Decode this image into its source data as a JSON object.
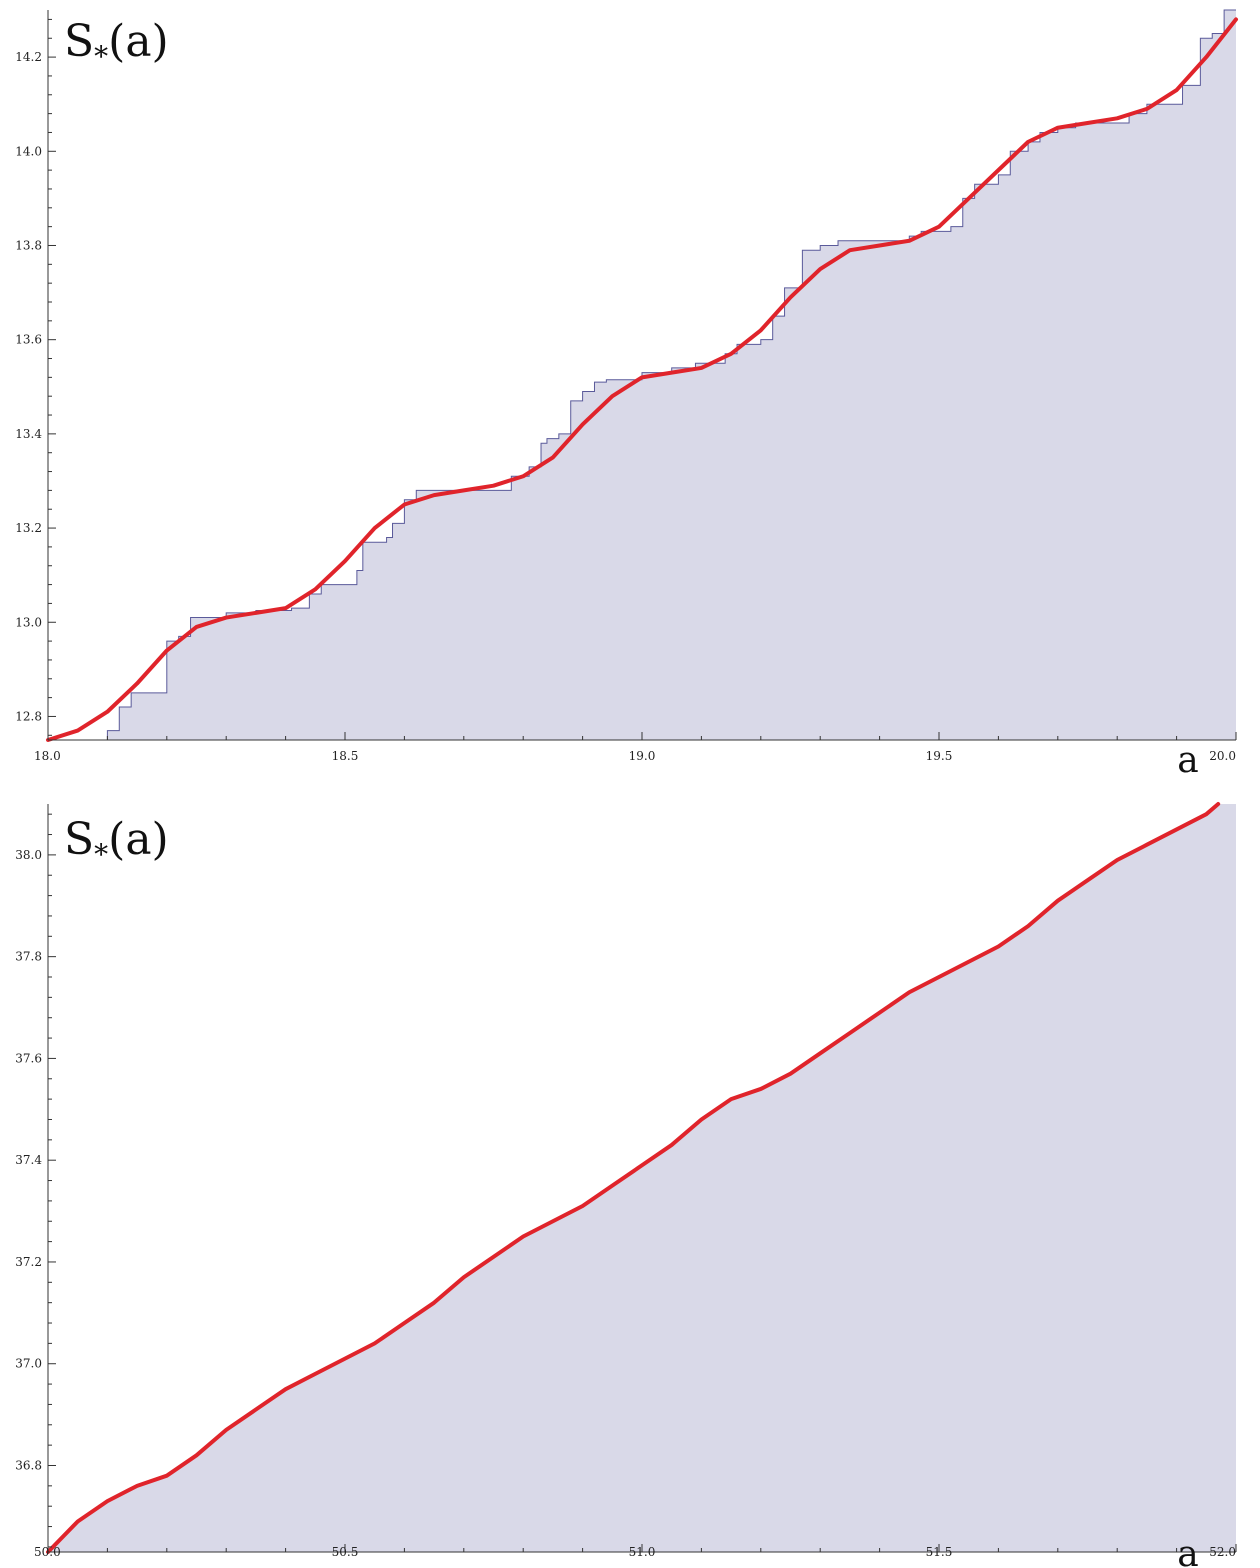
{
  "colors": {
    "fill": "#d9d9e8",
    "step_line": "#5a5a9a",
    "smooth_curve": "#e0242b",
    "axis": "#333333"
  },
  "chart_data": [
    {
      "type": "area",
      "ylabel": {
        "main": "S",
        "subscript": "*",
        "arg": "(a)"
      },
      "xlabel": "a",
      "xlim": [
        18.0,
        20.0
      ],
      "ylim": [
        12.75,
        14.3
      ],
      "x_ticks": [
        18.0,
        18.5,
        19.0,
        19.5,
        20.0
      ],
      "x_tick_labels": [
        "18.0",
        "18.5",
        "19.0",
        "19.5",
        "20.0"
      ],
      "y_ticks": [
        12.8,
        13.0,
        13.2,
        13.4,
        13.6,
        13.8,
        14.0,
        14.2
      ],
      "y_tick_labels": [
        "12.8",
        "13.0",
        "13.2",
        "13.4",
        "13.6",
        "13.8",
        "14.0",
        "14.2"
      ],
      "series": [
        {
          "role": "step",
          "x": [
            18.0,
            18.1,
            18.12,
            18.14,
            18.19,
            18.2,
            18.22,
            18.24,
            18.3,
            18.35,
            18.41,
            18.44,
            18.46,
            18.5,
            18.52,
            18.53,
            18.57,
            18.58,
            18.6,
            18.62,
            18.65,
            18.78,
            18.81,
            18.83,
            18.84,
            18.86,
            18.88,
            18.9,
            18.92,
            18.94,
            19.0,
            19.05,
            19.09,
            19.14,
            19.16,
            19.2,
            19.22,
            19.24,
            19.27,
            19.3,
            19.33,
            19.39,
            19.45,
            19.47,
            19.52,
            19.54,
            19.56,
            19.6,
            19.62,
            19.65,
            19.67,
            19.7,
            19.73,
            19.78,
            19.82,
            19.85,
            19.91,
            19.94,
            19.96,
            19.98,
            20.0
          ],
          "y": [
            12.75,
            12.77,
            12.82,
            12.85,
            12.85,
            12.96,
            12.97,
            13.01,
            13.02,
            13.025,
            13.03,
            13.06,
            13.08,
            13.08,
            13.11,
            13.17,
            13.18,
            13.21,
            13.26,
            13.28,
            13.28,
            13.31,
            13.33,
            13.38,
            13.39,
            13.4,
            13.47,
            13.49,
            13.51,
            13.515,
            13.53,
            13.54,
            13.55,
            13.57,
            13.59,
            13.6,
            13.65,
            13.71,
            13.79,
            13.8,
            13.81,
            13.81,
            13.82,
            13.83,
            13.84,
            13.9,
            13.93,
            13.95,
            14.0,
            14.02,
            14.04,
            14.05,
            14.06,
            14.06,
            14.08,
            14.1,
            14.14,
            14.24,
            14.25,
            14.3,
            14.3
          ]
        },
        {
          "role": "smooth",
          "x": [
            18.0,
            18.05,
            18.1,
            18.15,
            18.2,
            18.25,
            18.3,
            18.35,
            18.4,
            18.45,
            18.5,
            18.55,
            18.6,
            18.65,
            18.7,
            18.75,
            18.8,
            18.85,
            18.9,
            18.95,
            19.0,
            19.05,
            19.1,
            19.15,
            19.2,
            19.25,
            19.3,
            19.35,
            19.4,
            19.45,
            19.5,
            19.55,
            19.6,
            19.65,
            19.7,
            19.75,
            19.8,
            19.85,
            19.9,
            19.95,
            20.0
          ],
          "y": [
            12.75,
            12.77,
            12.81,
            12.87,
            12.94,
            12.99,
            13.01,
            13.02,
            13.03,
            13.07,
            13.13,
            13.2,
            13.25,
            13.27,
            13.28,
            13.29,
            13.31,
            13.35,
            13.42,
            13.48,
            13.52,
            13.53,
            13.54,
            13.57,
            13.62,
            13.69,
            13.75,
            13.79,
            13.8,
            13.81,
            13.84,
            13.9,
            13.96,
            14.02,
            14.05,
            14.06,
            14.07,
            14.09,
            14.13,
            14.2,
            14.28
          ]
        }
      ]
    },
    {
      "type": "area",
      "ylabel": {
        "main": "S",
        "subscript": "*",
        "arg": "(a)"
      },
      "xlabel": "a",
      "xlim": [
        50.0,
        52.0
      ],
      "ylim": [
        36.63,
        38.1
      ],
      "x_ticks": [
        50.0,
        50.5,
        51.0,
        51.5,
        52.0
      ],
      "x_tick_labels": [
        "50.0",
        "50.5",
        "51.0",
        "51.5",
        "52.0"
      ],
      "y_ticks": [
        36.8,
        37.0,
        37.2,
        37.4,
        37.6,
        37.8,
        38.0
      ],
      "y_tick_labels": [
        "36.8",
        "37.0",
        "37.2",
        "37.4",
        "37.6",
        "37.8",
        "38.0"
      ],
      "series": [
        {
          "role": "smooth",
          "x": [
            50.0,
            50.05,
            50.1,
            50.15,
            50.2,
            50.25,
            50.3,
            50.35,
            50.4,
            50.45,
            50.5,
            50.55,
            50.6,
            50.65,
            50.7,
            50.75,
            50.8,
            50.85,
            50.9,
            50.95,
            51.0,
            51.05,
            51.1,
            51.15,
            51.2,
            51.25,
            51.3,
            51.35,
            51.4,
            51.45,
            51.5,
            51.55,
            51.6,
            51.65,
            51.7,
            51.75,
            51.8,
            51.85,
            51.9,
            51.95,
            51.97
          ],
          "y": [
            36.63,
            36.69,
            36.73,
            36.76,
            36.78,
            36.82,
            36.87,
            36.91,
            36.95,
            36.98,
            37.01,
            37.04,
            37.08,
            37.12,
            37.17,
            37.21,
            37.25,
            37.28,
            37.31,
            37.35,
            37.39,
            37.43,
            37.48,
            37.52,
            37.54,
            37.57,
            37.61,
            37.65,
            37.69,
            37.73,
            37.76,
            37.79,
            37.82,
            37.86,
            37.91,
            37.95,
            37.99,
            38.02,
            38.05,
            38.08,
            38.1
          ]
        }
      ]
    }
  ]
}
